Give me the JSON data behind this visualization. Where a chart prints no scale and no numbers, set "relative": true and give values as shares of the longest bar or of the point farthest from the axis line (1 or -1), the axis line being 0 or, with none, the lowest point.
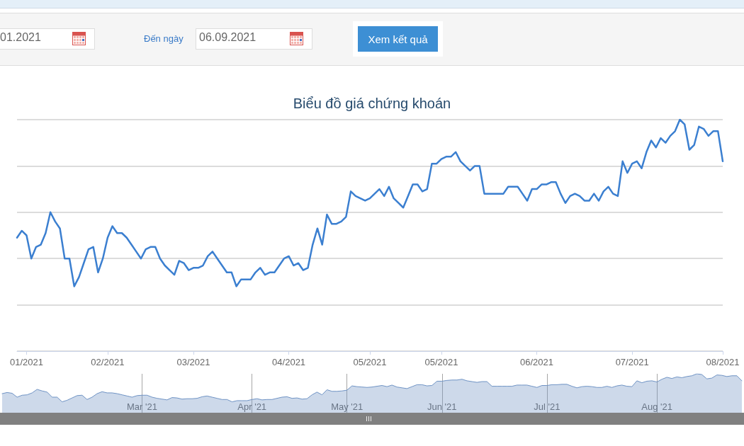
{
  "chart_data": [
    {
      "type": "line",
      "title": "Biểu đồ giá chứng khoán",
      "relative": true,
      "grid": "y",
      "marker": "none",
      "color": "#3b7fd0",
      "annotations": [
        "01.2021",
        "Đến ngày",
        "06.09.2021",
        "Xem kết quả"
      ],
      "categories": [
        null,
        null,
        "01/2021",
        null,
        null,
        null,
        null,
        null,
        null,
        null,
        null,
        null,
        null,
        null,
        null,
        null,
        null,
        null,
        null,
        "02/2021",
        null,
        null,
        null,
        null,
        null,
        null,
        null,
        null,
        null,
        null,
        null,
        null,
        null,
        null,
        null,
        null,
        null,
        "03/2021",
        null,
        null,
        null,
        null,
        null,
        null,
        null,
        null,
        null,
        null,
        null,
        null,
        null,
        null,
        null,
        null,
        null,
        null,
        null,
        "04/2021",
        null,
        null,
        null,
        null,
        null,
        null,
        null,
        null,
        null,
        null,
        null,
        null,
        null,
        null,
        null,
        null,
        "05/2021",
        null,
        null,
        null,
        null,
        null,
        null,
        null,
        null,
        null,
        null,
        null,
        null,
        null,
        null,
        "05/2021",
        null,
        null,
        null,
        null,
        null,
        null,
        null,
        null,
        null,
        null,
        null,
        null,
        null,
        null,
        null,
        null,
        null,
        null,
        null,
        "06/2021",
        null,
        null,
        null,
        null,
        null,
        null,
        null,
        null,
        null,
        null,
        null,
        null,
        null,
        null,
        null,
        null,
        null,
        null,
        null,
        "07/2021",
        null,
        null,
        null,
        null,
        null,
        null,
        null,
        null,
        null,
        null,
        null,
        null,
        null,
        null,
        null,
        null,
        null,
        null,
        "08/2021"
      ],
      "values": [
        0.49,
        0.52,
        0.5,
        0.4,
        0.45,
        0.46,
        0.51,
        0.6,
        0.56,
        0.53,
        0.4,
        0.4,
        0.28,
        0.32,
        0.38,
        0.44,
        0.45,
        0.34,
        0.4,
        0.49,
        0.54,
        0.51,
        0.51,
        0.49,
        0.46,
        0.43,
        0.4,
        0.44,
        0.45,
        0.45,
        0.4,
        0.37,
        0.35,
        0.33,
        0.39,
        0.38,
        0.35,
        0.36,
        0.36,
        0.37,
        0.41,
        0.43,
        0.4,
        0.37,
        0.34,
        0.34,
        0.28,
        0.31,
        0.31,
        0.31,
        0.34,
        0.36,
        0.33,
        0.34,
        0.34,
        0.37,
        0.4,
        0.41,
        0.37,
        0.38,
        0.35,
        0.36,
        0.46,
        0.53,
        0.46,
        0.59,
        0.55,
        0.55,
        0.56,
        0.58,
        0.69,
        0.67,
        0.66,
        0.65,
        0.66,
        0.68,
        0.7,
        0.67,
        0.71,
        0.66,
        0.64,
        0.62,
        0.67,
        0.72,
        0.72,
        0.69,
        0.7,
        0.81,
        0.81,
        0.83,
        0.84,
        0.84,
        0.86,
        0.82,
        0.8,
        0.78,
        0.8,
        0.8,
        0.68,
        0.68,
        0.68,
        0.68,
        0.68,
        0.71,
        0.71,
        0.71,
        0.68,
        0.65,
        0.7,
        0.7,
        0.72,
        0.72,
        0.73,
        0.73,
        0.68,
        0.64,
        0.67,
        0.68,
        0.67,
        0.65,
        0.65,
        0.68,
        0.65,
        0.69,
        0.71,
        0.68,
        0.67,
        0.82,
        0.77,
        0.81,
        0.82,
        0.79,
        0.86,
        0.91,
        0.88,
        0.92,
        0.9,
        0.93,
        0.95,
        1.0,
        0.98,
        0.87,
        0.89,
        0.97,
        0.96,
        0.93,
        0.95,
        0.95,
        0.82
      ]
    },
    {
      "type": "area",
      "relative": true,
      "grid": "x",
      "color": "#6f93c4",
      "categories": [
        null,
        null,
        null,
        null,
        null,
        null,
        null,
        null,
        null,
        null,
        null,
        null,
        null,
        null,
        null,
        null,
        null,
        null,
        null,
        null,
        null,
        null,
        null,
        null,
        null,
        null,
        null,
        null,
        "Mar '21",
        null,
        null,
        null,
        null,
        null,
        null,
        null,
        null,
        null,
        null,
        null,
        null,
        null,
        null,
        null,
        null,
        null,
        null,
        null,
        null,
        null,
        "Apr '21",
        null,
        null,
        null,
        null,
        null,
        null,
        null,
        null,
        null,
        null,
        null,
        null,
        null,
        null,
        null,
        null,
        null,
        null,
        "May '21",
        null,
        null,
        null,
        null,
        null,
        null,
        null,
        null,
        null,
        null,
        null,
        null,
        null,
        null,
        null,
        null,
        null,
        null,
        "Jun '21",
        null,
        null,
        null,
        null,
        null,
        null,
        null,
        null,
        null,
        null,
        null,
        null,
        null,
        null,
        null,
        null,
        null,
        null,
        null,
        null,
        "Jul '21",
        null,
        null,
        null,
        null,
        null,
        null,
        null,
        null,
        null,
        null,
        null,
        null,
        null,
        null,
        null,
        null,
        null,
        null,
        null,
        null,
        null,
        "Aug '21",
        null,
        null,
        null,
        null,
        null,
        null,
        null,
        null,
        null,
        null,
        null,
        null,
        null,
        null,
        null,
        null,
        null
      ],
      "values": [
        0.49,
        0.52,
        0.5,
        0.4,
        0.45,
        0.46,
        0.51,
        0.6,
        0.56,
        0.53,
        0.4,
        0.4,
        0.28,
        0.32,
        0.38,
        0.44,
        0.45,
        0.34,
        0.4,
        0.49,
        0.54,
        0.51,
        0.51,
        0.49,
        0.46,
        0.43,
        0.4,
        0.44,
        0.45,
        0.45,
        0.4,
        0.37,
        0.35,
        0.33,
        0.39,
        0.38,
        0.35,
        0.36,
        0.36,
        0.37,
        0.41,
        0.43,
        0.4,
        0.37,
        0.34,
        0.34,
        0.28,
        0.31,
        0.31,
        0.31,
        0.34,
        0.36,
        0.33,
        0.34,
        0.34,
        0.37,
        0.4,
        0.41,
        0.37,
        0.38,
        0.35,
        0.36,
        0.46,
        0.53,
        0.46,
        0.59,
        0.55,
        0.55,
        0.56,
        0.58,
        0.69,
        0.67,
        0.66,
        0.65,
        0.66,
        0.68,
        0.7,
        0.67,
        0.71,
        0.66,
        0.64,
        0.62,
        0.67,
        0.72,
        0.72,
        0.69,
        0.7,
        0.81,
        0.81,
        0.83,
        0.84,
        0.84,
        0.86,
        0.82,
        0.8,
        0.78,
        0.8,
        0.8,
        0.68,
        0.68,
        0.68,
        0.68,
        0.68,
        0.71,
        0.71,
        0.71,
        0.68,
        0.65,
        0.7,
        0.7,
        0.72,
        0.72,
        0.73,
        0.73,
        0.68,
        0.64,
        0.67,
        0.68,
        0.67,
        0.65,
        0.65,
        0.68,
        0.65,
        0.69,
        0.71,
        0.68,
        0.67,
        0.82,
        0.77,
        0.81,
        0.82,
        0.79,
        0.86,
        0.91,
        0.88,
        0.92,
        0.9,
        0.93,
        0.95,
        1.0,
        0.98,
        0.87,
        0.89,
        0.97,
        0.96,
        0.93,
        0.95,
        0.95,
        0.82
      ]
    }
  ]
}
